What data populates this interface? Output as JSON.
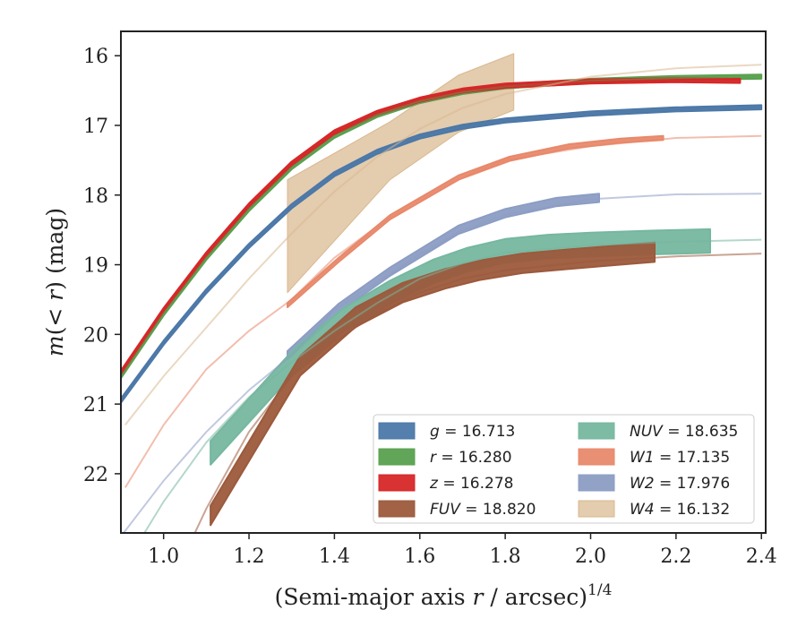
{
  "chart_data": {
    "type": "line",
    "xlabel": "(Semi-major axis r / arcsec)^1/4",
    "ylabel": "m(< r) (mag)",
    "xlim": [
      0.9,
      2.41
    ],
    "ylim": [
      22.85,
      15.65
    ],
    "y_inverted": true,
    "xticks": [
      "1.0",
      "1.2",
      "1.4",
      "1.6",
      "1.8",
      "2.0",
      "2.2",
      "2.4"
    ],
    "yticks": [
      "16",
      "17",
      "18",
      "19",
      "20",
      "21",
      "22"
    ],
    "legend_position": "lower-right",
    "legend_columns": 2,
    "series": [
      {
        "key": "g",
        "name": "g = 16.713",
        "label_italic": "g",
        "label_value": " = 16.713",
        "color": "#4c78a8",
        "model": [
          [
            0.9,
            20.95
          ],
          [
            1.0,
            20.12
          ],
          [
            1.1,
            19.38
          ],
          [
            1.2,
            18.73
          ],
          [
            1.3,
            18.16
          ],
          [
            1.4,
            17.7
          ],
          [
            1.5,
            17.38
          ],
          [
            1.6,
            17.16
          ],
          [
            1.7,
            17.02
          ],
          [
            1.8,
            16.93
          ],
          [
            2.0,
            16.83
          ],
          [
            2.2,
            16.77
          ],
          [
            2.4,
            16.74
          ]
        ],
        "data": [
          [
            0.9,
            20.95
          ],
          [
            1.0,
            20.12
          ],
          [
            1.1,
            19.38
          ],
          [
            1.2,
            18.73
          ],
          [
            1.3,
            18.16
          ],
          [
            1.4,
            17.7
          ],
          [
            1.5,
            17.38
          ],
          [
            1.6,
            17.16
          ],
          [
            1.7,
            17.02
          ],
          [
            1.8,
            16.93
          ],
          [
            2.0,
            16.83
          ],
          [
            2.2,
            16.77
          ],
          [
            2.4,
            16.74
          ]
        ],
        "band": 0.03
      },
      {
        "key": "r",
        "name": "r = 16.280",
        "label_italic": "r",
        "label_value": " = 16.280",
        "color": "#59a14f",
        "model": [
          [
            0.9,
            20.6
          ],
          [
            1.0,
            19.7
          ],
          [
            1.1,
            18.9
          ],
          [
            1.2,
            18.2
          ],
          [
            1.3,
            17.6
          ],
          [
            1.4,
            17.15
          ],
          [
            1.5,
            16.85
          ],
          [
            1.6,
            16.65
          ],
          [
            1.7,
            16.52
          ],
          [
            1.8,
            16.44
          ],
          [
            2.0,
            16.36
          ],
          [
            2.2,
            16.32
          ],
          [
            2.4,
            16.3
          ]
        ],
        "data": [
          [
            0.9,
            20.6
          ],
          [
            1.0,
            19.7
          ],
          [
            1.1,
            18.9
          ],
          [
            1.2,
            18.2
          ],
          [
            1.3,
            17.6
          ],
          [
            1.4,
            17.15
          ],
          [
            1.5,
            16.85
          ],
          [
            1.6,
            16.65
          ],
          [
            1.7,
            16.52
          ],
          [
            1.8,
            16.44
          ],
          [
            2.0,
            16.36
          ],
          [
            2.2,
            16.32
          ],
          [
            2.4,
            16.3
          ]
        ],
        "band": 0.03
      },
      {
        "key": "z",
        "name": "z = 16.278",
        "label_italic": "z",
        "label_value": " = 16.278",
        "color": "#d62728",
        "model": [
          [
            0.9,
            20.55
          ],
          [
            1.0,
            19.65
          ],
          [
            1.1,
            18.85
          ],
          [
            1.2,
            18.15
          ],
          [
            1.3,
            17.55
          ],
          [
            1.4,
            17.1
          ],
          [
            1.5,
            16.82
          ],
          [
            1.6,
            16.63
          ],
          [
            1.7,
            16.5
          ],
          [
            1.8,
            16.43
          ],
          [
            2.0,
            16.37
          ],
          [
            2.2,
            16.35
          ],
          [
            2.35,
            16.35
          ]
        ],
        "data": [
          [
            0.9,
            20.55
          ],
          [
            1.0,
            19.65
          ],
          [
            1.1,
            18.85
          ],
          [
            1.2,
            18.15
          ],
          [
            1.3,
            17.55
          ],
          [
            1.4,
            17.1
          ],
          [
            1.5,
            16.82
          ],
          [
            1.6,
            16.63
          ],
          [
            1.7,
            16.5
          ],
          [
            1.8,
            16.43
          ],
          [
            2.0,
            16.37
          ],
          [
            2.2,
            16.35
          ],
          [
            2.35,
            16.36
          ]
        ],
        "band": 0.03
      },
      {
        "key": "FUV",
        "name": "FUV = 18.820",
        "label_italic": "FUV",
        "label_value": " = 18.820",
        "color": "#9c5a3c",
        "model": [
          [
            1.0,
            23.8
          ],
          [
            1.1,
            22.5
          ],
          [
            1.2,
            21.4
          ],
          [
            1.3,
            20.6
          ],
          [
            1.4,
            20.1
          ],
          [
            1.5,
            19.7
          ],
          [
            1.6,
            19.4
          ],
          [
            1.7,
            19.2
          ],
          [
            1.8,
            19.08
          ],
          [
            2.0,
            18.95
          ],
          [
            2.2,
            18.88
          ],
          [
            2.4,
            18.84
          ]
        ],
        "data": [
          [
            1.11,
            22.6
          ],
          [
            1.32,
            20.45
          ],
          [
            1.45,
            19.75
          ],
          [
            1.56,
            19.4
          ],
          [
            1.66,
            19.2
          ],
          [
            1.74,
            19.08
          ],
          [
            1.84,
            18.98
          ],
          [
            1.95,
            18.92
          ],
          [
            2.05,
            18.87
          ],
          [
            2.15,
            18.82
          ]
        ],
        "band": 0.14
      },
      {
        "key": "NUV",
        "name": "NUV = 18.635",
        "label_italic": "NUV",
        "label_value": " = 18.635",
        "color": "#76b7a0",
        "model": [
          [
            0.9,
            23.4
          ],
          [
            1.0,
            22.4
          ],
          [
            1.1,
            21.55
          ],
          [
            1.2,
            20.9
          ],
          [
            1.3,
            20.4
          ],
          [
            1.4,
            19.95
          ],
          [
            1.5,
            19.55
          ],
          [
            1.6,
            19.2
          ],
          [
            1.7,
            18.98
          ],
          [
            1.8,
            18.83
          ],
          [
            2.0,
            18.72
          ],
          [
            2.2,
            18.67
          ],
          [
            2.4,
            18.64
          ]
        ],
        "data": [
          [
            1.11,
            21.7
          ],
          [
            1.31,
            20.35
          ],
          [
            1.42,
            19.8
          ],
          [
            1.53,
            19.4
          ],
          [
            1.63,
            19.1
          ],
          [
            1.71,
            18.93
          ],
          [
            1.8,
            18.8
          ],
          [
            1.9,
            18.74
          ],
          [
            2.0,
            18.71
          ],
          [
            2.15,
            18.68
          ],
          [
            2.28,
            18.66
          ]
        ],
        "band": 0.17
      },
      {
        "key": "W1",
        "name": "W1 = 17.135",
        "label_italic": "W1",
        "label_value": " = 17.135",
        "color": "#e8896b",
        "model": [
          [
            0.91,
            22.2
          ],
          [
            1.0,
            21.3
          ],
          [
            1.1,
            20.5
          ],
          [
            1.2,
            19.95
          ],
          [
            1.3,
            19.5
          ],
          [
            1.4,
            18.9
          ],
          [
            1.5,
            18.45
          ],
          [
            1.6,
            18.1
          ],
          [
            1.7,
            17.75
          ],
          [
            1.8,
            17.5
          ],
          [
            2.0,
            17.3
          ],
          [
            2.2,
            17.18
          ],
          [
            2.4,
            17.15
          ]
        ],
        "data": [
          [
            1.29,
            19.58
          ],
          [
            1.41,
            18.93
          ],
          [
            1.53,
            18.32
          ],
          [
            1.69,
            17.75
          ],
          [
            1.81,
            17.48
          ],
          [
            1.95,
            17.3
          ],
          [
            2.07,
            17.22
          ],
          [
            2.17,
            17.18
          ]
        ],
        "band": 0.03
      },
      {
        "key": "W2",
        "name": "W2 = 17.976",
        "label_italic": "W2",
        "label_value": " = 17.976",
        "color": "#8c9dc4",
        "model": [
          [
            0.9,
            22.9
          ],
          [
            1.0,
            22.1
          ],
          [
            1.1,
            21.4
          ],
          [
            1.2,
            20.8
          ],
          [
            1.3,
            20.3
          ],
          [
            1.4,
            19.65
          ],
          [
            1.5,
            19.25
          ],
          [
            1.6,
            18.85
          ],
          [
            1.7,
            18.5
          ],
          [
            1.8,
            18.28
          ],
          [
            2.0,
            18.06
          ],
          [
            2.2,
            17.99
          ],
          [
            2.4,
            17.98
          ]
        ],
        "data": [
          [
            1.29,
            20.3
          ],
          [
            1.41,
            19.62
          ],
          [
            1.53,
            19.1
          ],
          [
            1.69,
            18.5
          ],
          [
            1.8,
            18.26
          ],
          [
            1.92,
            18.1
          ],
          [
            2.02,
            18.04
          ]
        ],
        "band": 0.06
      },
      {
        "key": "W4",
        "name": "W4 = 16.132",
        "label_italic": "W4",
        "label_value": " = 16.132",
        "color": "#d9b88f",
        "model": [
          [
            0.91,
            21.3
          ],
          [
            1.0,
            20.6
          ],
          [
            1.1,
            19.9
          ],
          [
            1.2,
            19.2
          ],
          [
            1.3,
            18.55
          ],
          [
            1.4,
            17.95
          ],
          [
            1.5,
            17.45
          ],
          [
            1.6,
            17.05
          ],
          [
            1.7,
            16.75
          ],
          [
            1.8,
            16.55
          ],
          [
            2.0,
            16.3
          ],
          [
            2.2,
            16.18
          ],
          [
            2.4,
            16.13
          ]
        ],
        "data": [
          [
            1.29,
            18.6
          ],
          [
            1.53,
            17.3
          ],
          [
            1.69,
            16.85
          ],
          [
            1.82,
            16.4
          ]
        ],
        "band_lo": [
          [
            1.29,
            19.4
          ],
          [
            1.53,
            17.78
          ],
          [
            1.69,
            17.1
          ],
          [
            1.82,
            16.78
          ]
        ],
        "band_hi": [
          [
            1.29,
            17.78
          ],
          [
            1.53,
            16.95
          ],
          [
            1.69,
            16.28
          ],
          [
            1.82,
            15.97
          ]
        ]
      }
    ]
  }
}
